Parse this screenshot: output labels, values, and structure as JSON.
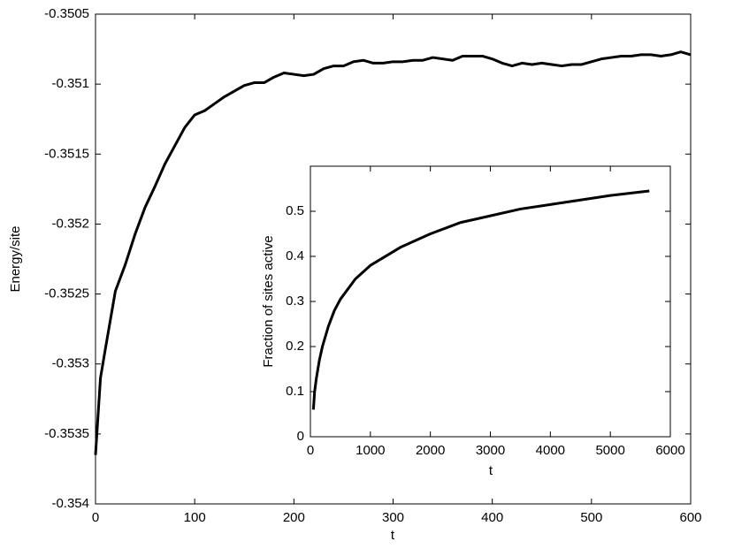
{
  "chart_data": [
    {
      "type": "line",
      "x_label": "t",
      "y_label": "Energy/site",
      "x": [
        0,
        5,
        10,
        20,
        30,
        40,
        50,
        60,
        70,
        80,
        90,
        100,
        110,
        120,
        130,
        140,
        150,
        160,
        170,
        180,
        190,
        200,
        210,
        220,
        230,
        240,
        250,
        260,
        270,
        280,
        290,
        300,
        310,
        320,
        330,
        340,
        350,
        360,
        370,
        380,
        390,
        400,
        410,
        420,
        430,
        440,
        450,
        460,
        470,
        480,
        490,
        500,
        510,
        520,
        530,
        540,
        550,
        560,
        570,
        580,
        590,
        600
      ],
      "series": [
        {
          "color": "#000000",
          "values": [
            -0.35365,
            -0.3531,
            -0.35289,
            -0.35248,
            -0.35229,
            -0.35207,
            -0.35188,
            -0.35173,
            -0.35157,
            -0.35144,
            -0.35131,
            -0.35122,
            -0.35119,
            -0.35114,
            -0.35109,
            -0.35105,
            -0.35101,
            -0.35099,
            -0.35099,
            -0.35095,
            -0.35092,
            -0.35093,
            -0.35094,
            -0.35093,
            -0.35089,
            -0.35087,
            -0.35087,
            -0.35084,
            -0.35083,
            -0.35085,
            -0.35085,
            -0.35084,
            -0.35084,
            -0.35083,
            -0.35083,
            -0.35081,
            -0.35082,
            -0.35083,
            -0.3508,
            -0.3508,
            -0.3508,
            -0.35082,
            -0.35085,
            -0.35087,
            -0.35085,
            -0.35086,
            -0.35085,
            -0.35086,
            -0.35087,
            -0.35086,
            -0.35086,
            -0.35084,
            -0.35082,
            -0.35081,
            -0.3508,
            -0.3508,
            -0.35079,
            -0.35079,
            -0.3508,
            -0.35079,
            -0.35077,
            -0.35079
          ]
        }
      ],
      "xlim": [
        0,
        600
      ],
      "xticks": [
        0,
        100,
        200,
        300,
        400,
        500,
        600
      ],
      "ylim": [
        -0.354,
        -0.3505
      ],
      "yticks": [
        -0.354,
        -0.3535,
        -0.353,
        -0.3525,
        -0.352,
        -0.3515,
        -0.351,
        -0.3505
      ]
    },
    {
      "type": "line",
      "x_label": "t",
      "y_label": "Fraction of sites active",
      "x": [
        50,
        70,
        100,
        150,
        200,
        300,
        400,
        500,
        750,
        1000,
        1500,
        2000,
        2500,
        3000,
        3500,
        4000,
        4500,
        5000,
        5650
      ],
      "series": [
        {
          "color": "#000000",
          "values": [
            0.06,
            0.1,
            0.13,
            0.17,
            0.2,
            0.245,
            0.28,
            0.305,
            0.35,
            0.38,
            0.42,
            0.45,
            0.475,
            0.49,
            0.505,
            0.515,
            0.525,
            0.535,
            0.545
          ]
        }
      ],
      "xlim": [
        0,
        6000
      ],
      "xticks": [
        0,
        1000,
        2000,
        3000,
        4000,
        5000,
        6000
      ],
      "ylim": [
        0,
        0.6
      ],
      "yticks": [
        0,
        0.1,
        0.2,
        0.3,
        0.4,
        0.5
      ]
    }
  ]
}
